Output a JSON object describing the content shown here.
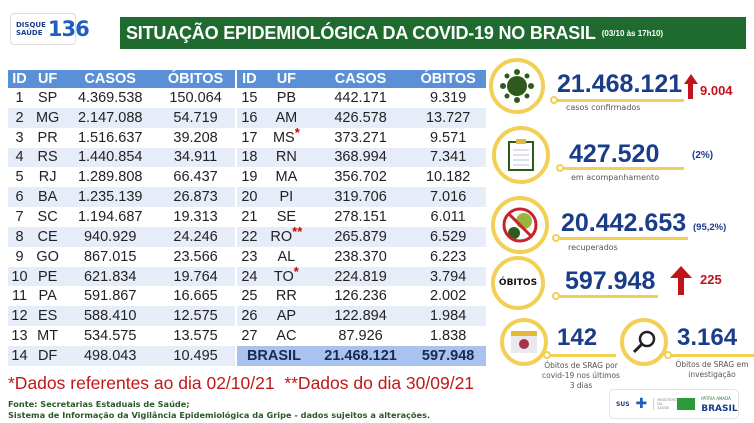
{
  "header": {
    "logo_top": "DISQUE",
    "logo_bottom": "SAÚDE",
    "logo_number": "136",
    "title": "SITUAÇÃO EPIDEMIOLÓGICA DA COVID-19 NO BRASIL",
    "date": "(03/10 às 17h10)"
  },
  "table": {
    "columns": [
      "ID",
      "UF",
      "CASOS",
      "ÓBITOS"
    ],
    "left": [
      [
        "1",
        "SP",
        "4.369.538",
        "150.064"
      ],
      [
        "2",
        "MG",
        "2.147.088",
        "54.719"
      ],
      [
        "3",
        "PR",
        "1.516.637",
        "39.208"
      ],
      [
        "4",
        "RS",
        "1.440.854",
        "34.911"
      ],
      [
        "5",
        "RJ",
        "1.289.808",
        "66.437"
      ],
      [
        "6",
        "BA",
        "1.235.139",
        "26.873"
      ],
      [
        "7",
        "SC",
        "1.194.687",
        "19.313"
      ],
      [
        "8",
        "CE",
        "940.929",
        "24.246"
      ],
      [
        "9",
        "GO",
        "867.015",
        "23.566"
      ],
      [
        "10",
        "PE",
        "621.834",
        "19.764"
      ],
      [
        "11",
        "PA",
        "591.867",
        "16.665"
      ],
      [
        "12",
        "ES",
        "588.410",
        "12.575"
      ],
      [
        "13",
        "MT",
        "534.575",
        "13.575"
      ],
      [
        "14",
        "DF",
        "498.043",
        "10.495"
      ]
    ],
    "right": [
      [
        "15",
        "PB",
        "442.171",
        "9.319",
        ""
      ],
      [
        "16",
        "AM",
        "426.578",
        "13.727",
        ""
      ],
      [
        "17",
        "MS",
        "373.271",
        "9.571",
        "*"
      ],
      [
        "18",
        "RN",
        "368.994",
        "7.341",
        ""
      ],
      [
        "19",
        "MA",
        "356.702",
        "10.182",
        ""
      ],
      [
        "20",
        "PI",
        "319.706",
        "7.016",
        ""
      ],
      [
        "21",
        "SE",
        "278.151",
        "6.011",
        ""
      ],
      [
        "22",
        "RO",
        "265.879",
        "6.529",
        "**"
      ],
      [
        "23",
        "AL",
        "238.370",
        "6.223",
        ""
      ],
      [
        "24",
        "TO",
        "224.819",
        "3.794",
        "*"
      ],
      [
        "25",
        "RR",
        "126.236",
        "2.002",
        ""
      ],
      [
        "26",
        "AP",
        "122.894",
        "1.984",
        ""
      ],
      [
        "27",
        "AC",
        "87.926",
        "1.838",
        ""
      ]
    ],
    "total": {
      "label": "BRASIL",
      "casos": "21.468.121",
      "obitos": "597.948"
    }
  },
  "notes": {
    "note1": "*Dados referentes ao dia 02/10/21",
    "note2": "**Dados do dia 30/09/21",
    "source1": "Fonte: Secretarias Estaduais de Saúde;",
    "source2": "Sistema de Informação da Vigilância Epidemiológica da Gripe - dados sujeitos a alterações."
  },
  "stats": {
    "confirmed": {
      "value": "21.468.121",
      "label": "casos confirmados",
      "delta": "9.004",
      "icon": "virus-icon"
    },
    "monitoring": {
      "value": "427.520",
      "label": "em acompanhamento",
      "pct": "(2%)",
      "icon": "clipboard-icon"
    },
    "recovered": {
      "value": "20.442.653",
      "label": "recuperados",
      "pct": "(95,2%)",
      "icon": "no-virus-icon"
    },
    "deaths": {
      "badge": "ÓBITOS",
      "value": "597.948",
      "delta": "225"
    },
    "srag": {
      "value": "142",
      "label": "Óbitos de SRAG por covid-19 nos últimos 3 dias",
      "icon": "calendar-icon"
    },
    "srag_investigation": {
      "value": "3.164",
      "label": "Óbitos de SRAG em investigação",
      "icon": "magnifier-icon"
    }
  },
  "footer_logos": {
    "sus": "SUS",
    "ministry": "MINISTÉRIO DA SAÚDE",
    "gov_top": "PÁTRIA AMADA",
    "gov": "BRASIL"
  },
  "colors": {
    "banner": "#1f6b2f",
    "table_header": "#5b8fd6",
    "accent_blue": "#1a3d8a",
    "ring": "#f2cf55",
    "alert_red": "#c0141c"
  }
}
